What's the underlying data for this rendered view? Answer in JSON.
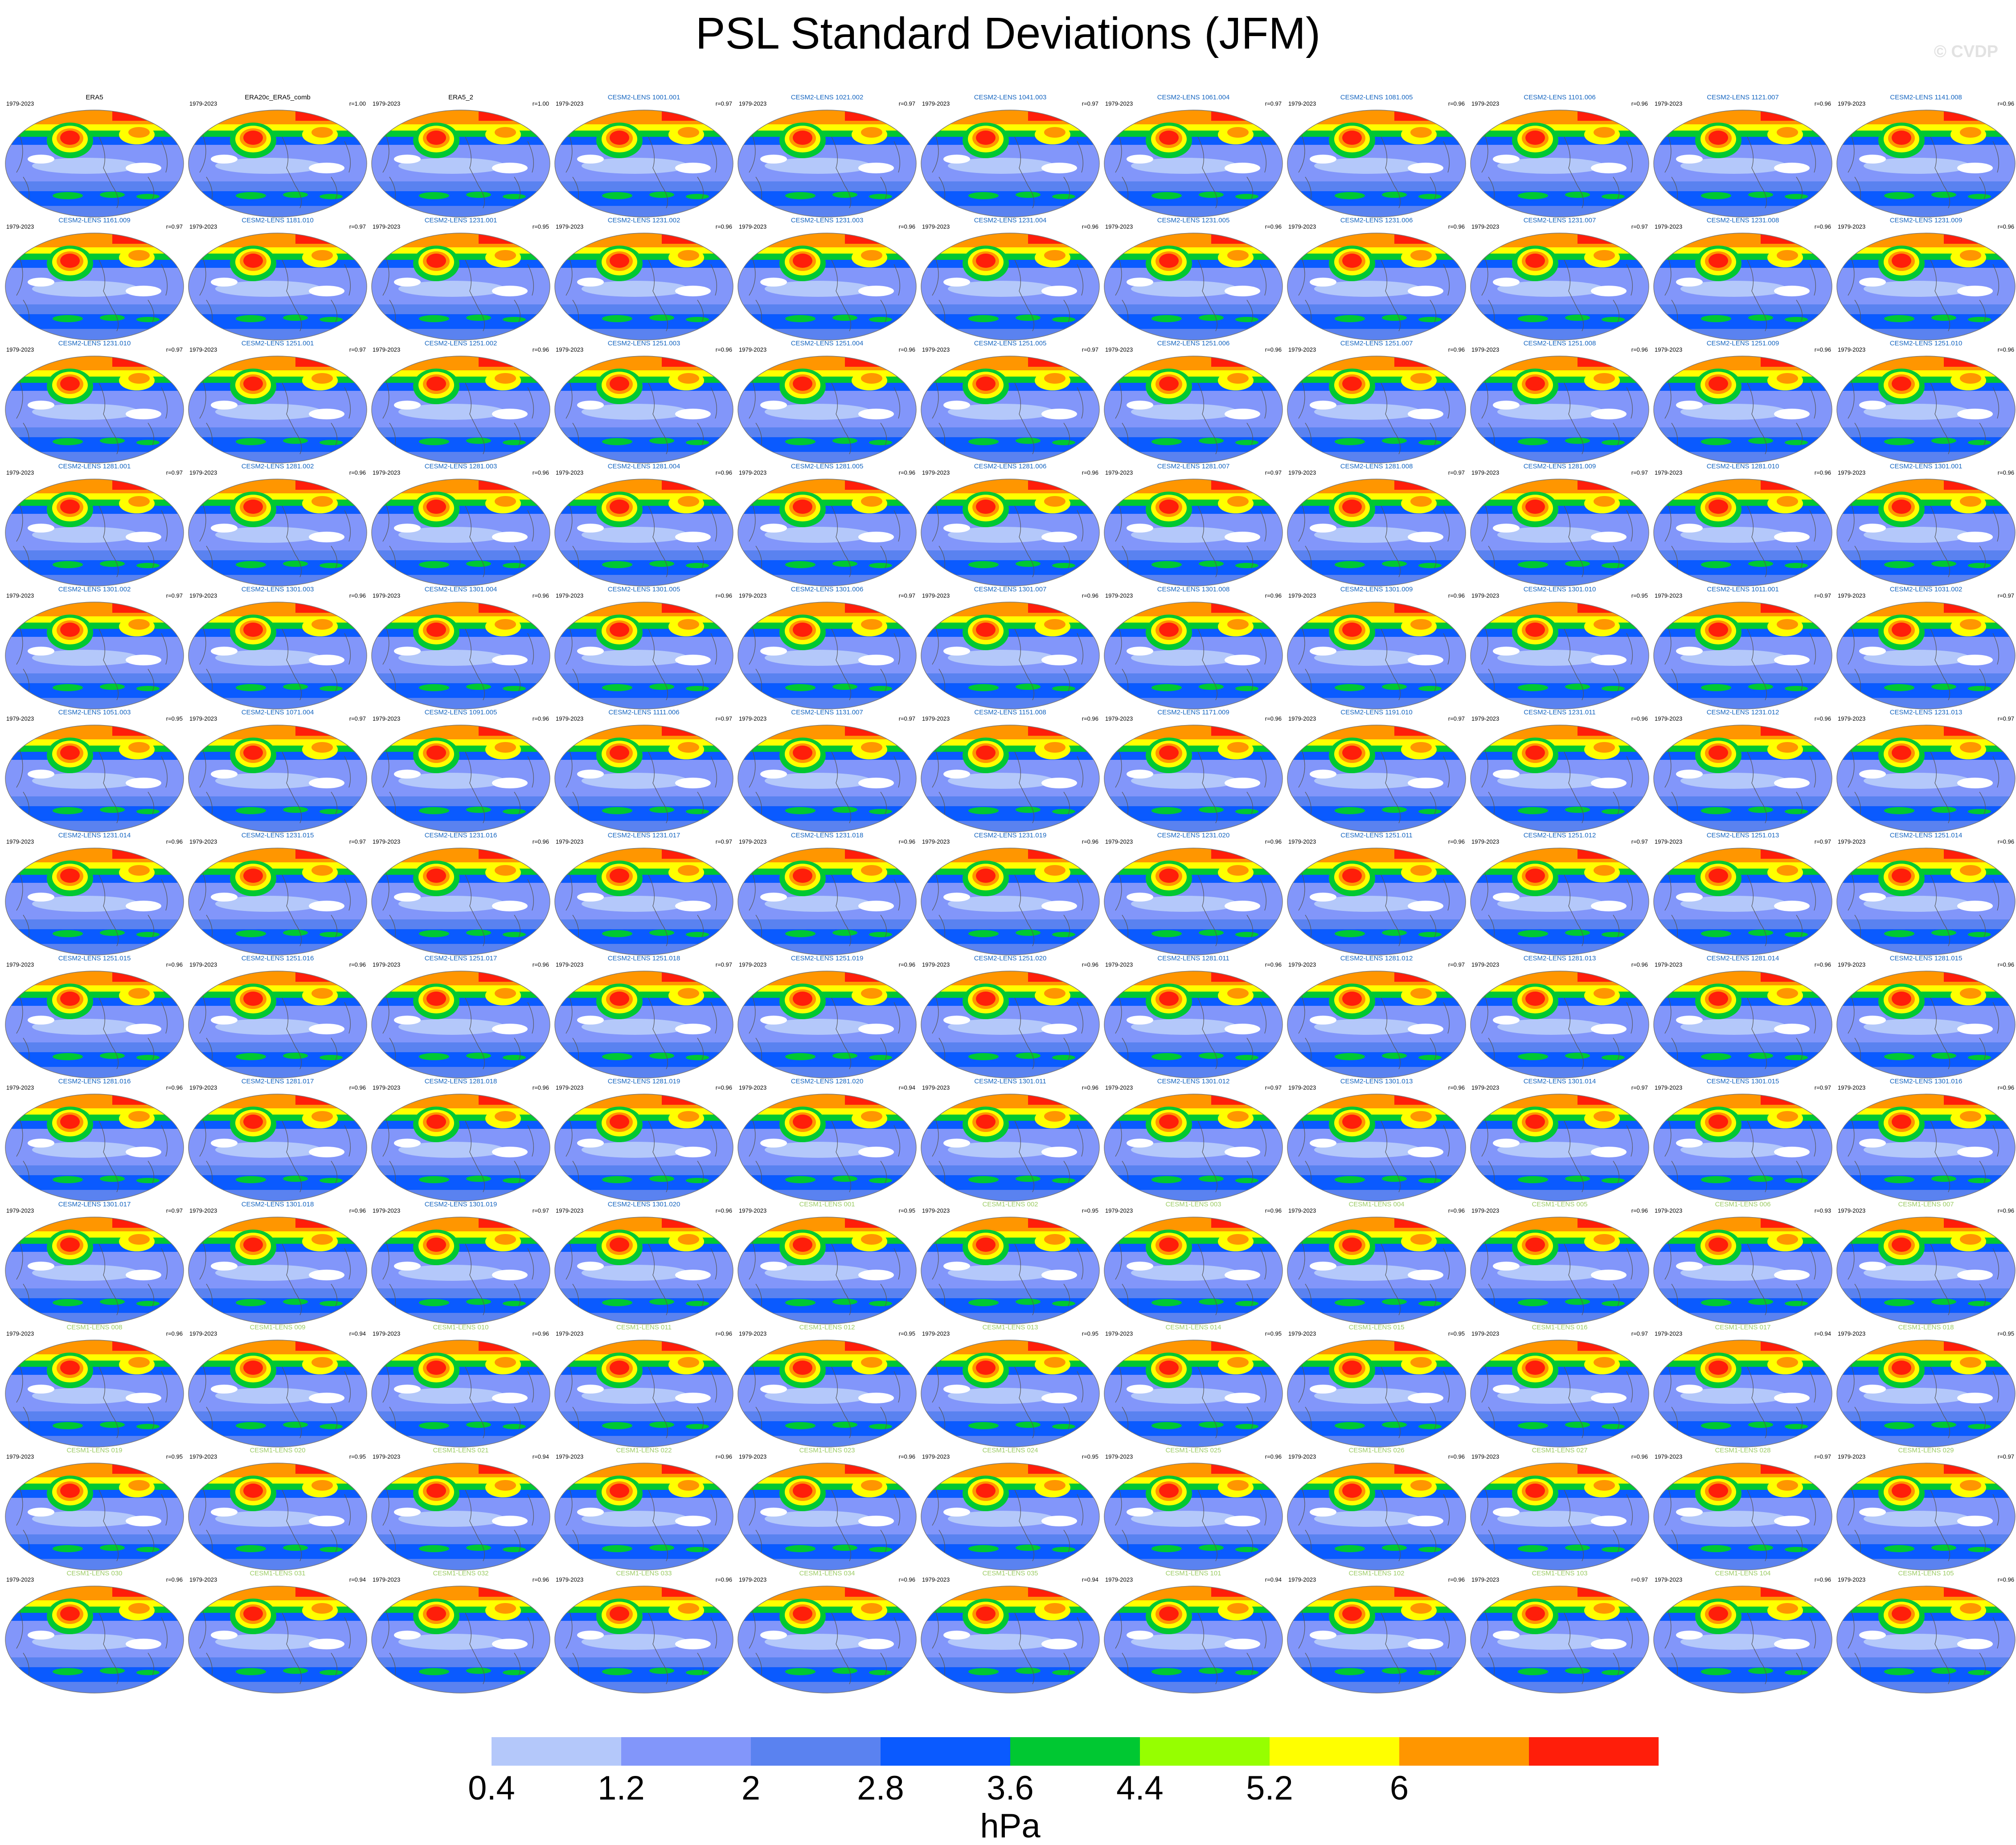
{
  "title": "PSL Standard Deviations (JFM)",
  "credit": "© CVDP",
  "chart_data": {
    "type": "map-grid",
    "panel_period": "1979-2023",
    "projection": "global ellipse",
    "panel_title_colors": {
      "observation": "#000000",
      "cesm2": "#1565C0",
      "cesm1": "#9CCC65"
    },
    "panels": [
      {
        "name": "ERA5",
        "r": "",
        "group": "observation"
      },
      {
        "name": "ERA20c_ERA5_comb",
        "r": "r=1.00",
        "group": "observation"
      },
      {
        "name": "ERA5_2",
        "r": "r=1.00",
        "group": "observation"
      },
      {
        "name": "CESM2-LENS 1001.001",
        "r": "r=0.97",
        "group": "cesm2"
      },
      {
        "name": "CESM2-LENS 1021.002",
        "r": "r=0.97",
        "group": "cesm2"
      },
      {
        "name": "CESM2-LENS 1041.003",
        "r": "r=0.97",
        "group": "cesm2"
      },
      {
        "name": "CESM2-LENS 1061.004",
        "r": "r=0.97",
        "group": "cesm2"
      },
      {
        "name": "CESM2-LENS 1081.005",
        "r": "r=0.96",
        "group": "cesm2"
      },
      {
        "name": "CESM2-LENS 1101.006",
        "r": "r=0.96",
        "group": "cesm2"
      },
      {
        "name": "CESM2-LENS 1121.007",
        "r": "r=0.96",
        "group": "cesm2"
      },
      {
        "name": "CESM2-LENS 1141.008",
        "r": "r=0.96",
        "group": "cesm2"
      },
      {
        "name": "CESM2-LENS 1161.009",
        "r": "r=0.97",
        "group": "cesm2"
      },
      {
        "name": "CESM2-LENS 1181.010",
        "r": "r=0.97",
        "group": "cesm2"
      },
      {
        "name": "CESM2-LENS 1231.001",
        "r": "r=0.95",
        "group": "cesm2"
      },
      {
        "name": "CESM2-LENS 1231.002",
        "r": "r=0.96",
        "group": "cesm2"
      },
      {
        "name": "CESM2-LENS 1231.003",
        "r": "r=0.96",
        "group": "cesm2"
      },
      {
        "name": "CESM2-LENS 1231.004",
        "r": "r=0.96",
        "group": "cesm2"
      },
      {
        "name": "CESM2-LENS 1231.005",
        "r": "r=0.96",
        "group": "cesm2"
      },
      {
        "name": "CESM2-LENS 1231.006",
        "r": "r=0.96",
        "group": "cesm2"
      },
      {
        "name": "CESM2-LENS 1231.007",
        "r": "r=0.97",
        "group": "cesm2"
      },
      {
        "name": "CESM2-LENS 1231.008",
        "r": "r=0.96",
        "group": "cesm2"
      },
      {
        "name": "CESM2-LENS 1231.009",
        "r": "r=0.96",
        "group": "cesm2"
      },
      {
        "name": "CESM2-LENS 1231.010",
        "r": "r=0.97",
        "group": "cesm2"
      },
      {
        "name": "CESM2-LENS 1251.001",
        "r": "r=0.97",
        "group": "cesm2"
      },
      {
        "name": "CESM2-LENS 1251.002",
        "r": "r=0.96",
        "group": "cesm2"
      },
      {
        "name": "CESM2-LENS 1251.003",
        "r": "r=0.96",
        "group": "cesm2"
      },
      {
        "name": "CESM2-LENS 1251.004",
        "r": "r=0.96",
        "group": "cesm2"
      },
      {
        "name": "CESM2-LENS 1251.005",
        "r": "r=0.97",
        "group": "cesm2"
      },
      {
        "name": "CESM2-LENS 1251.006",
        "r": "r=0.96",
        "group": "cesm2"
      },
      {
        "name": "CESM2-LENS 1251.007",
        "r": "r=0.96",
        "group": "cesm2"
      },
      {
        "name": "CESM2-LENS 1251.008",
        "r": "r=0.96",
        "group": "cesm2"
      },
      {
        "name": "CESM2-LENS 1251.009",
        "r": "r=0.96",
        "group": "cesm2"
      },
      {
        "name": "CESM2-LENS 1251.010",
        "r": "r=0.96",
        "group": "cesm2"
      },
      {
        "name": "CESM2-LENS 1281.001",
        "r": "r=0.97",
        "group": "cesm2"
      },
      {
        "name": "CESM2-LENS 1281.002",
        "r": "r=0.96",
        "group": "cesm2"
      },
      {
        "name": "CESM2-LENS 1281.003",
        "r": "r=0.96",
        "group": "cesm2"
      },
      {
        "name": "CESM2-LENS 1281.004",
        "r": "r=0.96",
        "group": "cesm2"
      },
      {
        "name": "CESM2-LENS 1281.005",
        "r": "r=0.96",
        "group": "cesm2"
      },
      {
        "name": "CESM2-LENS 1281.006",
        "r": "r=0.96",
        "group": "cesm2"
      },
      {
        "name": "CESM2-LENS 1281.007",
        "r": "r=0.97",
        "group": "cesm2"
      },
      {
        "name": "CESM2-LENS 1281.008",
        "r": "r=0.97",
        "group": "cesm2"
      },
      {
        "name": "CESM2-LENS 1281.009",
        "r": "r=0.97",
        "group": "cesm2"
      },
      {
        "name": "CESM2-LENS 1281.010",
        "r": "r=0.96",
        "group": "cesm2"
      },
      {
        "name": "CESM2-LENS 1301.001",
        "r": "r=0.96",
        "group": "cesm2"
      },
      {
        "name": "CESM2-LENS 1301.002",
        "r": "r=0.97",
        "group": "cesm2"
      },
      {
        "name": "CESM2-LENS 1301.003",
        "r": "r=0.96",
        "group": "cesm2"
      },
      {
        "name": "CESM2-LENS 1301.004",
        "r": "r=0.96",
        "group": "cesm2"
      },
      {
        "name": "CESM2-LENS 1301.005",
        "r": "r=0.96",
        "group": "cesm2"
      },
      {
        "name": "CESM2-LENS 1301.006",
        "r": "r=0.97",
        "group": "cesm2"
      },
      {
        "name": "CESM2-LENS 1301.007",
        "r": "r=0.96",
        "group": "cesm2"
      },
      {
        "name": "CESM2-LENS 1301.008",
        "r": "r=0.96",
        "group": "cesm2"
      },
      {
        "name": "CESM2-LENS 1301.009",
        "r": "r=0.96",
        "group": "cesm2"
      },
      {
        "name": "CESM2-LENS 1301.010",
        "r": "r=0.95",
        "group": "cesm2"
      },
      {
        "name": "CESM2-LENS 1011.001",
        "r": "r=0.97",
        "group": "cesm2"
      },
      {
        "name": "CESM2-LENS 1031.002",
        "r": "r=0.97",
        "group": "cesm2"
      },
      {
        "name": "CESM2-LENS 1051.003",
        "r": "r=0.95",
        "group": "cesm2"
      },
      {
        "name": "CESM2-LENS 1071.004",
        "r": "r=0.97",
        "group": "cesm2"
      },
      {
        "name": "CESM2-LENS 1091.005",
        "r": "r=0.96",
        "group": "cesm2"
      },
      {
        "name": "CESM2-LENS 1111.006",
        "r": "r=0.97",
        "group": "cesm2"
      },
      {
        "name": "CESM2-LENS 1131.007",
        "r": "r=0.97",
        "group": "cesm2"
      },
      {
        "name": "CESM2-LENS 1151.008",
        "r": "r=0.96",
        "group": "cesm2"
      },
      {
        "name": "CESM2-LENS 1171.009",
        "r": "r=0.96",
        "group": "cesm2"
      },
      {
        "name": "CESM2-LENS 1191.010",
        "r": "r=0.97",
        "group": "cesm2"
      },
      {
        "name": "CESM2-LENS 1231.011",
        "r": "r=0.96",
        "group": "cesm2"
      },
      {
        "name": "CESM2-LENS 1231.012",
        "r": "r=0.96",
        "group": "cesm2"
      },
      {
        "name": "CESM2-LENS 1231.013",
        "r": "r=0.97",
        "group": "cesm2"
      },
      {
        "name": "CESM2-LENS 1231.014",
        "r": "r=0.96",
        "group": "cesm2"
      },
      {
        "name": "CESM2-LENS 1231.015",
        "r": "r=0.97",
        "group": "cesm2"
      },
      {
        "name": "CESM2-LENS 1231.016",
        "r": "r=0.96",
        "group": "cesm2"
      },
      {
        "name": "CESM2-LENS 1231.017",
        "r": "r=0.97",
        "group": "cesm2"
      },
      {
        "name": "CESM2-LENS 1231.018",
        "r": "r=0.96",
        "group": "cesm2"
      },
      {
        "name": "CESM2-LENS 1231.019",
        "r": "r=0.96",
        "group": "cesm2"
      },
      {
        "name": "CESM2-LENS 1231.020",
        "r": "r=0.96",
        "group": "cesm2"
      },
      {
        "name": "CESM2-LENS 1251.011",
        "r": "r=0.96",
        "group": "cesm2"
      },
      {
        "name": "CESM2-LENS 1251.012",
        "r": "r=0.97",
        "group": "cesm2"
      },
      {
        "name": "CESM2-LENS 1251.013",
        "r": "r=0.97",
        "group": "cesm2"
      },
      {
        "name": "CESM2-LENS 1251.014",
        "r": "r=0.96",
        "group": "cesm2"
      },
      {
        "name": "CESM2-LENS 1251.015",
        "r": "r=0.96",
        "group": "cesm2"
      },
      {
        "name": "CESM2-LENS 1251.016",
        "r": "r=0.96",
        "group": "cesm2"
      },
      {
        "name": "CESM2-LENS 1251.017",
        "r": "r=0.96",
        "group": "cesm2"
      },
      {
        "name": "CESM2-LENS 1251.018",
        "r": "r=0.97",
        "group": "cesm2"
      },
      {
        "name": "CESM2-LENS 1251.019",
        "r": "r=0.96",
        "group": "cesm2"
      },
      {
        "name": "CESM2-LENS 1251.020",
        "r": "r=0.96",
        "group": "cesm2"
      },
      {
        "name": "CESM2-LENS 1281.011",
        "r": "r=0.96",
        "group": "cesm2"
      },
      {
        "name": "CESM2-LENS 1281.012",
        "r": "r=0.97",
        "group": "cesm2"
      },
      {
        "name": "CESM2-LENS 1281.013",
        "r": "r=0.96",
        "group": "cesm2"
      },
      {
        "name": "CESM2-LENS 1281.014",
        "r": "r=0.96",
        "group": "cesm2"
      },
      {
        "name": "CESM2-LENS 1281.015",
        "r": "r=0.96",
        "group": "cesm2"
      },
      {
        "name": "CESM2-LENS 1281.016",
        "r": "r=0.96",
        "group": "cesm2"
      },
      {
        "name": "CESM2-LENS 1281.017",
        "r": "r=0.96",
        "group": "cesm2"
      },
      {
        "name": "CESM2-LENS 1281.018",
        "r": "r=0.96",
        "group": "cesm2"
      },
      {
        "name": "CESM2-LENS 1281.019",
        "r": "r=0.96",
        "group": "cesm2"
      },
      {
        "name": "CESM2-LENS 1281.020",
        "r": "r=0.94",
        "group": "cesm2"
      },
      {
        "name": "CESM2-LENS 1301.011",
        "r": "r=0.96",
        "group": "cesm2"
      },
      {
        "name": "CESM2-LENS 1301.012",
        "r": "r=0.97",
        "group": "cesm2"
      },
      {
        "name": "CESM2-LENS 1301.013",
        "r": "r=0.96",
        "group": "cesm2"
      },
      {
        "name": "CESM2-LENS 1301.014",
        "r": "r=0.97",
        "group": "cesm2"
      },
      {
        "name": "CESM2-LENS 1301.015",
        "r": "r=0.97",
        "group": "cesm2"
      },
      {
        "name": "CESM2-LENS 1301.016",
        "r": "r=0.96",
        "group": "cesm2"
      },
      {
        "name": "CESM2-LENS 1301.017",
        "r": "r=0.97",
        "group": "cesm2"
      },
      {
        "name": "CESM2-LENS 1301.018",
        "r": "r=0.96",
        "group": "cesm2"
      },
      {
        "name": "CESM2-LENS 1301.019",
        "r": "r=0.97",
        "group": "cesm2"
      },
      {
        "name": "CESM2-LENS 1301.020",
        "r": "r=0.96",
        "group": "cesm2"
      },
      {
        "name": "CESM1-LENS 001",
        "r": "r=0.95",
        "group": "cesm1"
      },
      {
        "name": "CESM1-LENS 002",
        "r": "r=0.95",
        "group": "cesm1"
      },
      {
        "name": "CESM1-LENS 003",
        "r": "r=0.96",
        "group": "cesm1"
      },
      {
        "name": "CESM1-LENS 004",
        "r": "r=0.96",
        "group": "cesm1"
      },
      {
        "name": "CESM1-LENS 005",
        "r": "r=0.96",
        "group": "cesm1"
      },
      {
        "name": "CESM1-LENS 006",
        "r": "r=0.93",
        "group": "cesm1"
      },
      {
        "name": "CESM1-LENS 007",
        "r": "r=0.96",
        "group": "cesm1"
      },
      {
        "name": "CESM1-LENS 008",
        "r": "r=0.96",
        "group": "cesm1"
      },
      {
        "name": "CESM1-LENS 009",
        "r": "r=0.94",
        "group": "cesm1"
      },
      {
        "name": "CESM1-LENS 010",
        "r": "r=0.96",
        "group": "cesm1"
      },
      {
        "name": "CESM1-LENS 011",
        "r": "r=0.96",
        "group": "cesm1"
      },
      {
        "name": "CESM1-LENS 012",
        "r": "r=0.95",
        "group": "cesm1"
      },
      {
        "name": "CESM1-LENS 013",
        "r": "r=0.95",
        "group": "cesm1"
      },
      {
        "name": "CESM1-LENS 014",
        "r": "r=0.95",
        "group": "cesm1"
      },
      {
        "name": "CESM1-LENS 015",
        "r": "r=0.95",
        "group": "cesm1"
      },
      {
        "name": "CESM1-LENS 016",
        "r": "r=0.97",
        "group": "cesm1"
      },
      {
        "name": "CESM1-LENS 017",
        "r": "r=0.94",
        "group": "cesm1"
      },
      {
        "name": "CESM1-LENS 018",
        "r": "r=0.95",
        "group": "cesm1"
      },
      {
        "name": "CESM1-LENS 019",
        "r": "r=0.95",
        "group": "cesm1"
      },
      {
        "name": "CESM1-LENS 020",
        "r": "r=0.95",
        "group": "cesm1"
      },
      {
        "name": "CESM1-LENS 021",
        "r": "r=0.94",
        "group": "cesm1"
      },
      {
        "name": "CESM1-LENS 022",
        "r": "r=0.96",
        "group": "cesm1"
      },
      {
        "name": "CESM1-LENS 023",
        "r": "r=0.96",
        "group": "cesm1"
      },
      {
        "name": "CESM1-LENS 024",
        "r": "r=0.95",
        "group": "cesm1"
      },
      {
        "name": "CESM1-LENS 025",
        "r": "r=0.96",
        "group": "cesm1"
      },
      {
        "name": "CESM1-LENS 026",
        "r": "r=0.96",
        "group": "cesm1"
      },
      {
        "name": "CESM1-LENS 027",
        "r": "r=0.96",
        "group": "cesm1"
      },
      {
        "name": "CESM1-LENS 028",
        "r": "r=0.97",
        "group": "cesm1"
      },
      {
        "name": "CESM1-LENS 029",
        "r": "r=0.97",
        "group": "cesm1"
      },
      {
        "name": "CESM1-LENS 030",
        "r": "r=0.96",
        "group": "cesm1"
      },
      {
        "name": "CESM1-LENS 031",
        "r": "r=0.94",
        "group": "cesm1"
      },
      {
        "name": "CESM1-LENS 032",
        "r": "r=0.96",
        "group": "cesm1"
      },
      {
        "name": "CESM1-LENS 033",
        "r": "r=0.96",
        "group": "cesm1"
      },
      {
        "name": "CESM1-LENS 034",
        "r": "r=0.96",
        "group": "cesm1"
      },
      {
        "name": "CESM1-LENS 035",
        "r": "r=0.94",
        "group": "cesm1"
      },
      {
        "name": "CESM1-LENS 101",
        "r": "r=0.94",
        "group": "cesm1"
      },
      {
        "name": "CESM1-LENS 102",
        "r": "r=0.96",
        "group": "cesm1"
      },
      {
        "name": "CESM1-LENS 103",
        "r": "r=0.97",
        "group": "cesm1"
      },
      {
        "name": "CESM1-LENS 104",
        "r": "r=0.96",
        "group": "cesm1"
      },
      {
        "name": "CESM1-LENS 105",
        "r": "r=0.96",
        "group": "cesm1"
      }
    ],
    "colorbar": {
      "unit": "hPa",
      "labels": [
        "0.4",
        "1.2",
        "2",
        "2.8",
        "3.6",
        "4.4",
        "5.2",
        "6"
      ],
      "colors": [
        "#FFFFFF",
        "#B4C8FA",
        "#8296FA",
        "#5A82F0",
        "#0A5AFF",
        "#00C832",
        "#96FF00",
        "#FFFF00",
        "#FF9600",
        "#FF1E0A"
      ]
    }
  }
}
